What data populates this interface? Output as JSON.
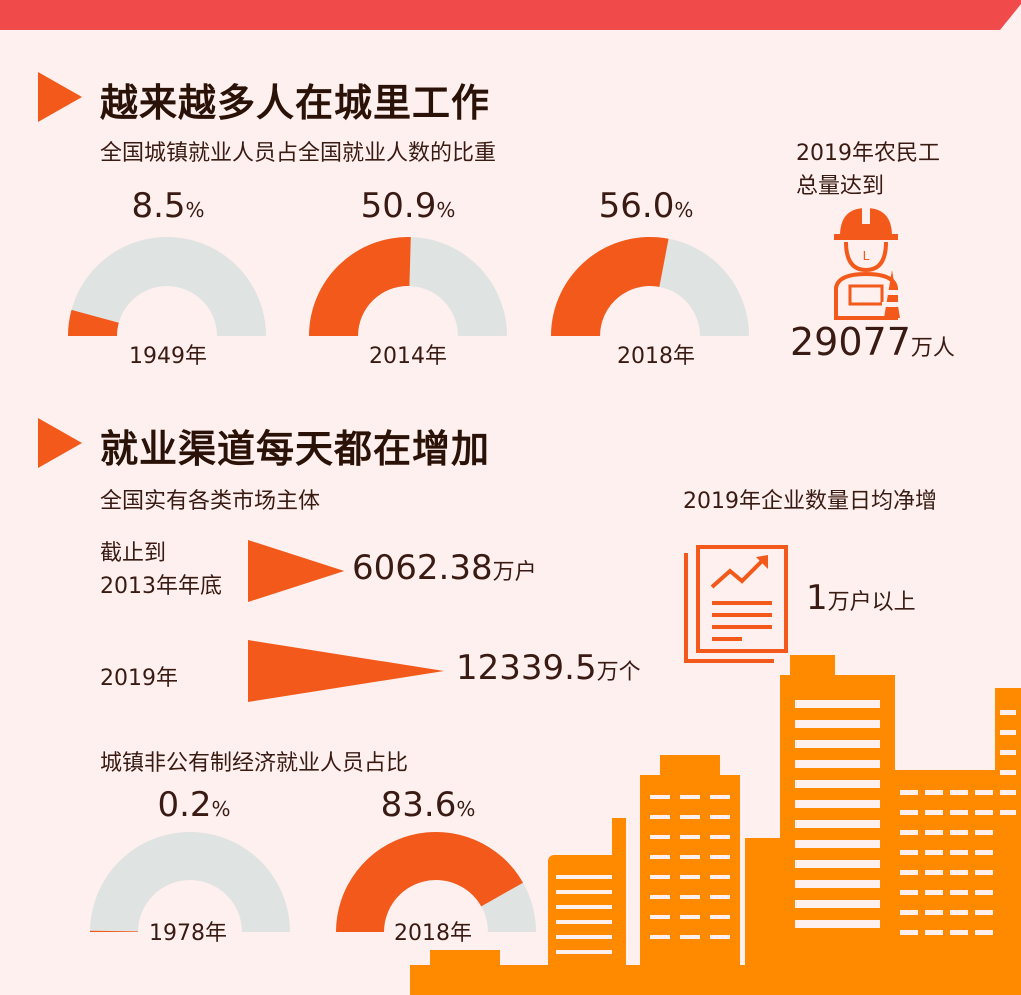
{
  "colors": {
    "accent": "#f2591a",
    "track": "#dfe3e1",
    "bar": "#f04a4a",
    "city": "#ff8a00",
    "background": "#fdf0ee"
  },
  "section1": {
    "title": "越来越多人在城里工作",
    "subtitle": "全国城镇就业人员占全国就业人数的比重",
    "gauges": [
      {
        "value": "8.5",
        "unit": "%",
        "year": "1949年"
      },
      {
        "value": "50.9",
        "unit": "%",
        "year": "2014年"
      },
      {
        "value": "56.0",
        "unit": "%",
        "year": "2018年"
      }
    ],
    "migrant": {
      "line1": "2019年农民工",
      "line2": "总量达到",
      "number": "29077",
      "unit": "万人",
      "icon": "construction-worker-icon"
    }
  },
  "section2": {
    "title": "就业渠道每天都在增加",
    "subtitle": "全国实有各类市场主体",
    "rows": [
      {
        "label_line1": "截止到",
        "label_line2": "2013年年底",
        "number": "6062.38",
        "unit": "万户"
      },
      {
        "label": "2019年",
        "number": "12339.5",
        "unit": "万个"
      }
    ],
    "enterprise": {
      "title": "2019年企业数量日均净增",
      "number": "1",
      "unit": "万户以上",
      "icon": "growth-report-icon"
    },
    "nonpublic": {
      "subtitle": "城镇非公有制经济就业人员占比",
      "gauges": [
        {
          "value": "0.2",
          "unit": "%",
          "year": "1978年"
        },
        {
          "value": "83.6",
          "unit": "%",
          "year": "2018年"
        }
      ]
    }
  },
  "chart_data": [
    {
      "type": "pie",
      "title": "全国城镇就业人员占全国就业人数的比重",
      "categories": [
        "1949年",
        "2014年",
        "2018年"
      ],
      "values": [
        8.5,
        50.9,
        56.0
      ],
      "unit": "%"
    },
    {
      "type": "bar",
      "title": "全国实有各类市场主体",
      "categories": [
        "截止到2013年年底",
        "2019年"
      ],
      "values": [
        6062.38,
        12339.5
      ],
      "units": [
        "万户",
        "万个"
      ]
    },
    {
      "type": "pie",
      "title": "城镇非公有制经济就业人员占比",
      "categories": [
        "1978年",
        "2018年"
      ],
      "values": [
        0.2,
        83.6
      ],
      "unit": "%"
    }
  ]
}
